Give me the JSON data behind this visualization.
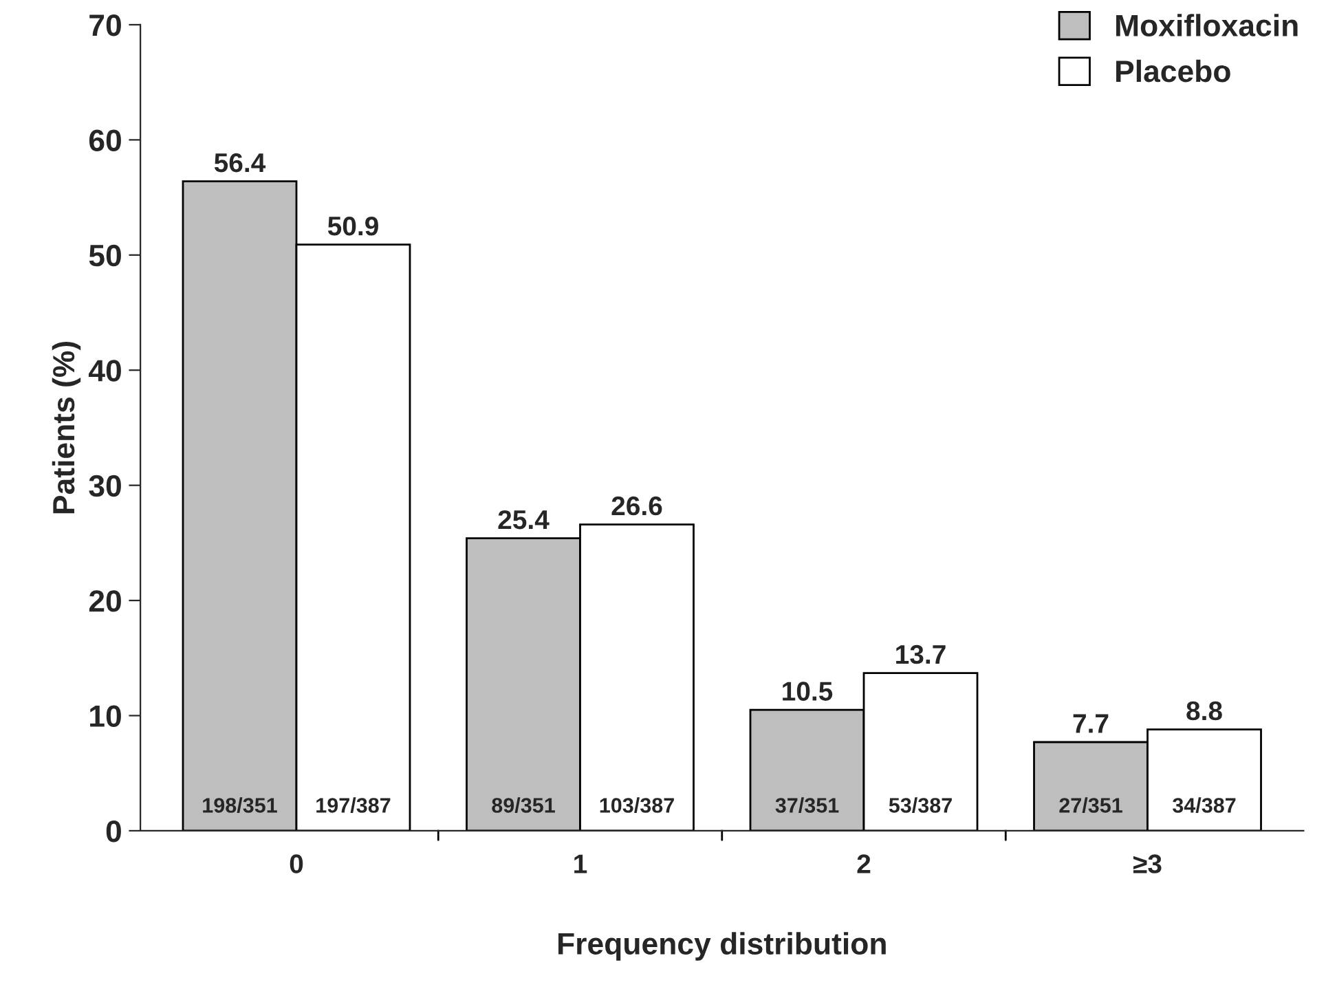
{
  "chart_data": {
    "type": "bar",
    "xlabel": "Frequency distribution",
    "ylabel": "Patients (%)",
    "categories": [
      "0",
      "1",
      "2",
      "≥3"
    ],
    "series": [
      {
        "name": "Moxifloxacin",
        "color": "#bebebe",
        "values": [
          56.4,
          25.4,
          10.5,
          7.7
        ]
      },
      {
        "name": "Placebo",
        "color": "#ffffff",
        "values": [
          50.9,
          26.6,
          13.7,
          8.8
        ]
      }
    ],
    "ylim": [
      0,
      70
    ],
    "yticks": [
      0,
      10,
      20,
      30,
      40,
      50,
      60,
      70
    ],
    "data_labels": true,
    "legend": "top right",
    "grid": false,
    "annotations": [
      "198/351",
      "197/387",
      "89/351",
      "103/387",
      "37/351",
      "53/387",
      "27/351",
      "34/387"
    ]
  }
}
